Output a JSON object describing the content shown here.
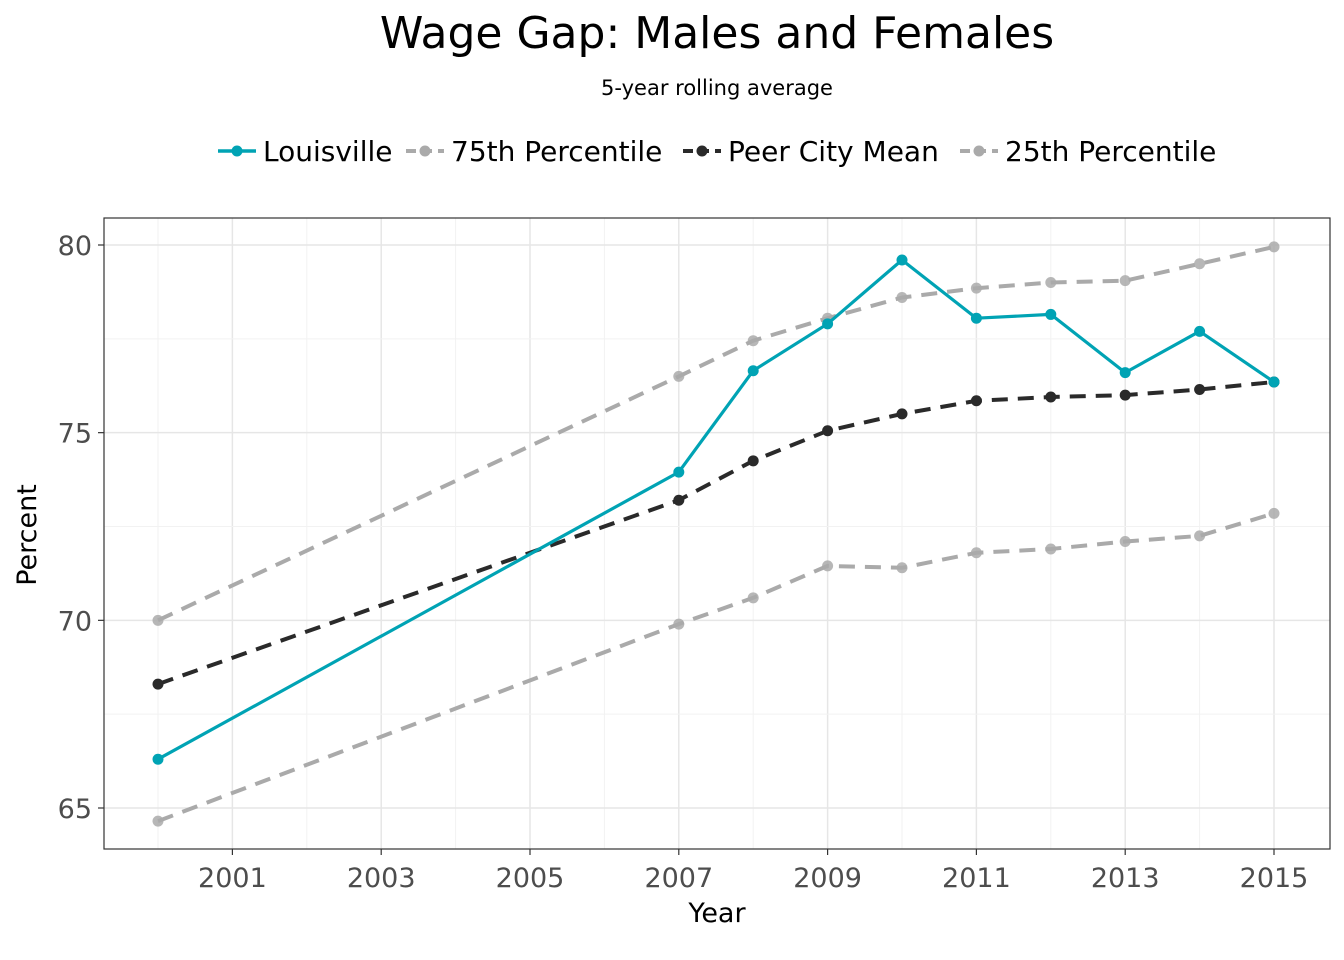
{
  "chart_data": {
    "type": "line",
    "title": "Wage Gap: Males and Females",
    "subtitle": "5-year rolling average",
    "xlabel": "Year",
    "ylabel": "Percent",
    "xlim": [
      2000,
      2015
    ],
    "ylim": [
      64,
      80.7
    ],
    "x_ticks": [
      2001,
      2003,
      2005,
      2007,
      2009,
      2011,
      2013,
      2015
    ],
    "y_ticks": [
      65,
      70,
      75,
      80
    ],
    "grid": true,
    "legend_position": "top",
    "series": [
      {
        "name": "Louisville",
        "color": "#00a3b4",
        "dash": "solid",
        "points": [
          [
            2000,
            66.3
          ],
          [
            2007,
            73.95
          ],
          [
            2008,
            76.65
          ],
          [
            2009,
            77.9
          ],
          [
            2010,
            79.6
          ],
          [
            2011,
            78.05
          ],
          [
            2012,
            78.15
          ],
          [
            2013,
            76.6
          ],
          [
            2014,
            77.7
          ],
          [
            2015,
            76.35
          ]
        ]
      },
      {
        "name": "75th Percentile",
        "color": "#aaaaaa",
        "dash": "dashed",
        "points": [
          [
            2000,
            70.0
          ],
          [
            2007,
            76.5
          ],
          [
            2008,
            77.45
          ],
          [
            2009,
            78.05
          ],
          [
            2010,
            78.6
          ],
          [
            2011,
            78.85
          ],
          [
            2012,
            79.0
          ],
          [
            2013,
            79.05
          ],
          [
            2014,
            79.5
          ],
          [
            2015,
            79.95
          ]
        ]
      },
      {
        "name": "Peer City Mean",
        "color": "#2a2a2a",
        "dash": "dashed",
        "points": [
          [
            2000,
            68.3
          ],
          [
            2007,
            73.2
          ],
          [
            2008,
            74.25
          ],
          [
            2009,
            75.05
          ],
          [
            2010,
            75.5
          ],
          [
            2011,
            75.85
          ],
          [
            2012,
            75.95
          ],
          [
            2013,
            76.0
          ],
          [
            2014,
            76.15
          ],
          [
            2015,
            76.35
          ]
        ]
      },
      {
        "name": "25th Percentile",
        "color": "#aaaaaa",
        "dash": "dashed",
        "points": [
          [
            2000,
            64.65
          ],
          [
            2007,
            69.9
          ],
          [
            2008,
            70.6
          ],
          [
            2009,
            71.45
          ],
          [
            2010,
            71.4
          ],
          [
            2011,
            71.8
          ],
          [
            2012,
            71.9
          ],
          [
            2013,
            72.1
          ],
          [
            2014,
            72.25
          ],
          [
            2015,
            72.85
          ]
        ]
      }
    ]
  }
}
